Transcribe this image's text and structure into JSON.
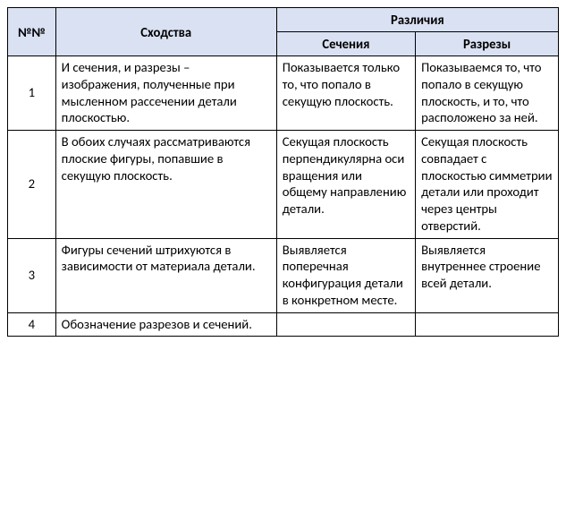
{
  "colors": {
    "header_bg": "#d9e1f2",
    "border": "#000000",
    "text": "#000000",
    "page_bg": "#ffffff"
  },
  "typography": {
    "font_family": "Calibri",
    "font_size_pt": 11
  },
  "table": {
    "headers": {
      "number": "№№",
      "similarities": "Сходства",
      "differences": "Различия",
      "sections": "Сечения",
      "cuts": "Разрезы"
    },
    "rows": [
      {
        "num": "1",
        "similarity": "И сечения, и разрезы – изображения, полученные при мысленном рассечении детали плоскостью.",
        "section": "Показывается только то, что попало в секущую плоскость.",
        "cut": "Показываемся то, что попало в секущую плоскость, и то, что расположено за ней."
      },
      {
        "num": "2",
        "similarity": "В обоих случаях рассматриваются плоские фигуры, попавшие в секущую плоскость.",
        "section": "Секущая плоскость перпендикулярна оси вращения или общему направлению детали.",
        "cut": "Секущая плоскость совпадает с плоскостью симметрии детали или проходит через центры отверстий."
      },
      {
        "num": "3",
        "similarity": "Фигуры сечений штрихуются в зависимости от материала детали.",
        "section": "Выявляется поперечная конфигурация детали в конкретном месте.",
        "cut": "Выявляется внутреннее строение всей детали."
      },
      {
        "num": "4",
        "similarity": "Обозначение разрезов и сечений.",
        "section": "",
        "cut": ""
      }
    ]
  }
}
